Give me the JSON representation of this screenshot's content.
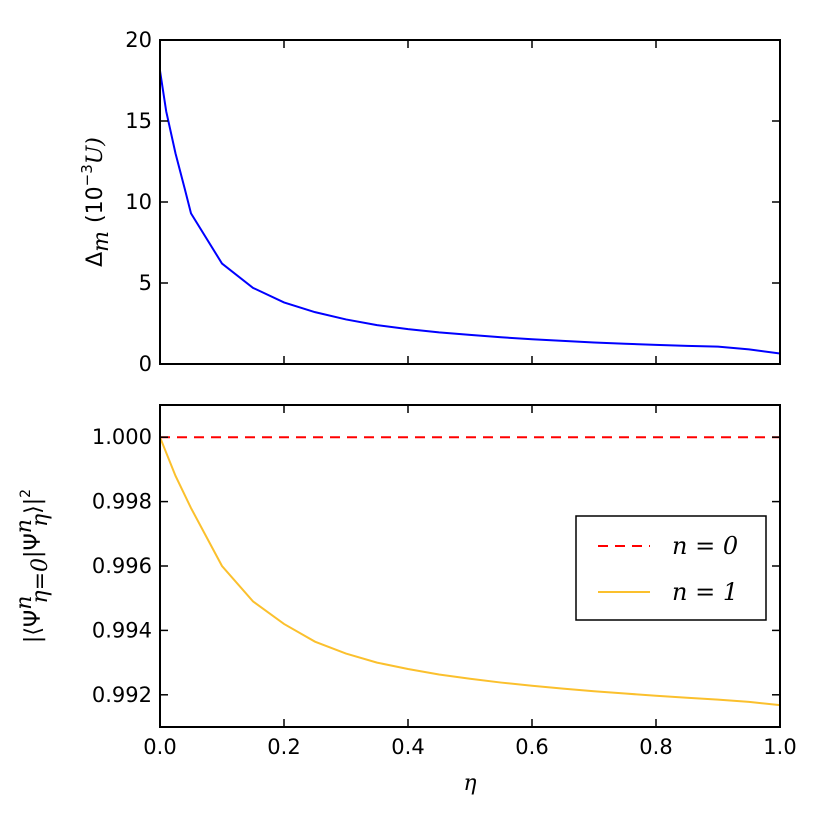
{
  "chart_data": [
    {
      "type": "line",
      "title": "",
      "xlabel": "",
      "ylabel": "Δm (10⁻³U)",
      "ylabel_parts": {
        "symbol": "Δ",
        "subscript": "m",
        "unit_prefix": "(10",
        "unit_exp": "−3",
        "unit_suffix": "U)"
      },
      "xlim": [
        0.0,
        1.0
      ],
      "ylim": [
        0,
        20
      ],
      "yticks": [
        0,
        5,
        10,
        15,
        20
      ],
      "ytick_labels": [
        "0",
        "5",
        "10",
        "15",
        "20"
      ],
      "xtick_labels_shown": false,
      "grid": false,
      "legend": null,
      "series": [
        {
          "color": "#0000ff",
          "line_style": "solid",
          "x": [
            0.0,
            0.01,
            0.025,
            0.04,
            0.05,
            0.1,
            0.15,
            0.2,
            0.25,
            0.3,
            0.35,
            0.4,
            0.45,
            0.5,
            0.55,
            0.6,
            0.65,
            0.7,
            0.75,
            0.8,
            0.85,
            0.9,
            0.95,
            1.0
          ],
          "y": [
            18.1,
            15.6,
            13.0,
            10.8,
            9.3,
            6.2,
            4.7,
            3.8,
            3.2,
            2.75,
            2.4,
            2.15,
            1.95,
            1.8,
            1.65,
            1.53,
            1.43,
            1.33,
            1.25,
            1.18,
            1.12,
            1.07,
            0.9,
            0.65
          ]
        }
      ]
    },
    {
      "type": "line",
      "title": "",
      "xlabel": "η",
      "ylabel": "|⟨Ψⁿη=0|Ψⁿη⟩|²",
      "ylabel_parts": {
        "open": "|⟨Ψ",
        "sup1": "n",
        "sub1": "η=0",
        "mid": "|Ψ",
        "sup2": "n",
        "sub2": "η",
        "close": "⟩|",
        "sup3": "2"
      },
      "xlim": [
        0.0,
        1.0
      ],
      "ylim": [
        0.991,
        1.001
      ],
      "xticks": [
        0.0,
        0.2,
        0.4,
        0.6,
        0.8,
        1.0
      ],
      "xtick_labels": [
        "0.0",
        "0.2",
        "0.4",
        "0.6",
        "0.8",
        "1.0"
      ],
      "yticks": [
        0.992,
        0.994,
        0.996,
        0.998,
        1.0
      ],
      "ytick_labels": [
        "0.992",
        "0.994",
        "0.996",
        "0.998",
        "1.000"
      ],
      "grid": false,
      "legend": "center-right",
      "series": [
        {
          "name": "n = 0",
          "color": "#ff0000",
          "line_style": "dashed",
          "x": [
            0.0,
            1.0
          ],
          "y": [
            1.0,
            1.0
          ]
        },
        {
          "name": "n = 1",
          "color": "#fbc02d",
          "line_style": "solid",
          "x": [
            0.0,
            0.025,
            0.05,
            0.1,
            0.15,
            0.2,
            0.25,
            0.3,
            0.35,
            0.4,
            0.45,
            0.5,
            0.55,
            0.6,
            0.65,
            0.7,
            0.75,
            0.8,
            0.85,
            0.9,
            0.95,
            1.0
          ],
          "y": [
            1.0,
            0.9988,
            0.9978,
            0.996,
            0.9949,
            0.9942,
            0.99365,
            0.99328,
            0.993,
            0.9928,
            0.99263,
            0.9925,
            0.99238,
            0.99228,
            0.99219,
            0.99211,
            0.99204,
            0.99197,
            0.99191,
            0.99185,
            0.99178,
            0.99168
          ]
        }
      ]
    }
  ]
}
